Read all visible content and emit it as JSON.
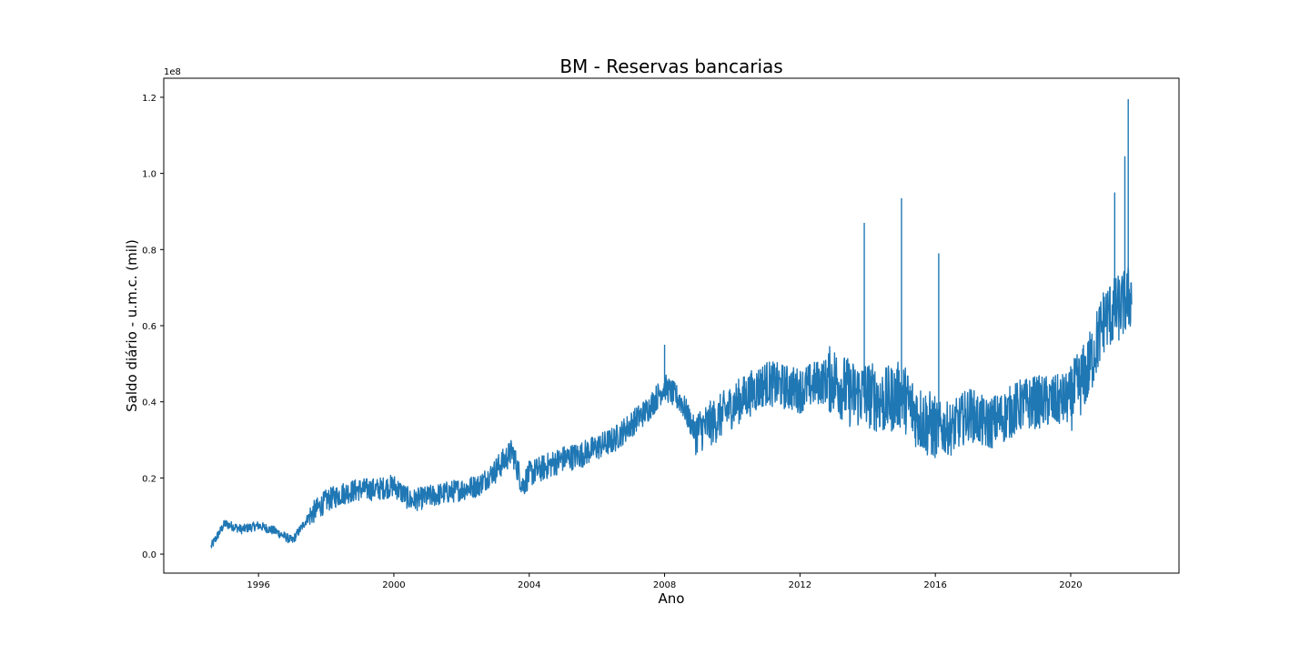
{
  "chart_data": {
    "type": "line",
    "title": "BM - Reservas bancarias",
    "xlabel": "Ano",
    "ylabel": "Saldo diário - u.m.c. (mil)",
    "y_offset_label": "1e8",
    "xlim": [
      1993.2,
      2023.2
    ],
    "ylim": [
      -0.05,
      1.25
    ],
    "y_scale_note": "values in units of 1e8",
    "x_ticks": [
      1996,
      2000,
      2004,
      2008,
      2012,
      2016,
      2020
    ],
    "x_tick_labels": [
      "1996",
      "2000",
      "2004",
      "2008",
      "2012",
      "2016",
      "2020"
    ],
    "y_ticks": [
      0.0,
      0.2,
      0.4,
      0.6,
      0.8,
      1.0,
      1.2
    ],
    "y_tick_labels": [
      "0.0",
      "0.2",
      "0.4",
      "0.6",
      "0.8",
      "1.0",
      "1.2"
    ],
    "grid": false,
    "legend": "none",
    "series_color": "#1f77b4",
    "series": [
      {
        "x": [
          1994.6,
          1995.0,
          1995.5,
          1996.0,
          1996.5,
          1997.0,
          1997.5,
          1998.0,
          1998.5,
          1999.0,
          1999.5,
          2000.0,
          2000.5,
          2001.0,
          2001.5,
          2002.0,
          2002.5,
          2003.0,
          2003.5,
          2003.8,
          2004.0,
          2004.5,
          2005.0,
          2005.5,
          2006.0,
          2006.5,
          2007.0,
          2007.5,
          2008.0,
          2008.5,
          2008.9,
          2009.5,
          2010.0,
          2010.5,
          2011.0,
          2011.5,
          2012.0,
          2012.5,
          2013.0,
          2013.5,
          2014.0,
          2014.5,
          2015.0,
          2015.5,
          2016.0,
          2016.5,
          2017.0,
          2017.5,
          2018.0,
          2018.5,
          2019.0,
          2019.5,
          2020.0,
          2020.5,
          2021.0,
          2021.5,
          2021.8
        ],
        "y": [
          0.02,
          0.08,
          0.065,
          0.075,
          0.06,
          0.035,
          0.1,
          0.14,
          0.16,
          0.17,
          0.17,
          0.18,
          0.14,
          0.15,
          0.16,
          0.17,
          0.18,
          0.22,
          0.27,
          0.18,
          0.21,
          0.23,
          0.25,
          0.26,
          0.28,
          0.3,
          0.34,
          0.38,
          0.44,
          0.4,
          0.32,
          0.35,
          0.39,
          0.42,
          0.45,
          0.44,
          0.43,
          0.45,
          0.46,
          0.42,
          0.42,
          0.4,
          0.42,
          0.36,
          0.33,
          0.33,
          0.37,
          0.34,
          0.36,
          0.39,
          0.4,
          0.4,
          0.41,
          0.48,
          0.62,
          0.65,
          0.68
        ]
      }
    ],
    "notable_peaks": [
      {
        "x": 2008.0,
        "y": 0.55
      },
      {
        "x": 2013.9,
        "y": 0.87
      },
      {
        "x": 2015.0,
        "y": 0.935
      },
      {
        "x": 2016.1,
        "y": 0.79
      },
      {
        "x": 2021.3,
        "y": 0.95
      },
      {
        "x": 2021.6,
        "y": 1.045
      },
      {
        "x": 2021.7,
        "y": 1.195
      }
    ]
  }
}
